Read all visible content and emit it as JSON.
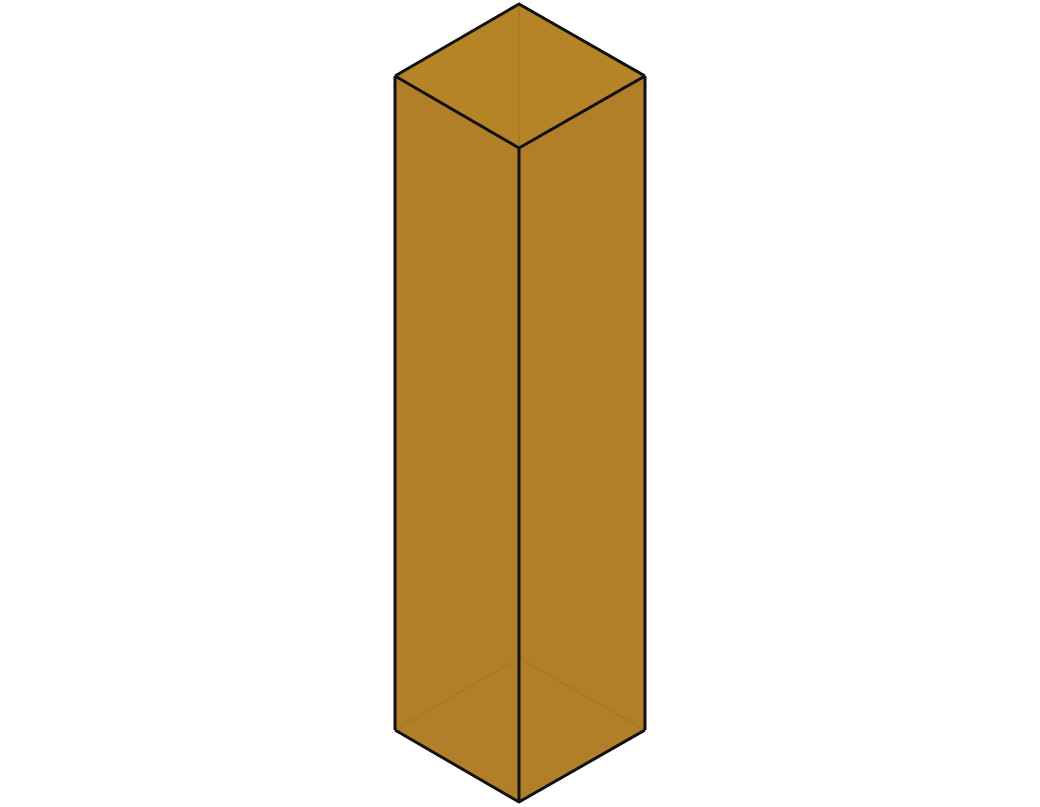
{
  "diagram": {
    "shape": "rectangular prism (square base, tall)",
    "colors": {
      "face_fill": "#b07f28",
      "face_fill_top": "#b58426",
      "edge_stroke": "#111111",
      "hidden_edge_stroke": "#9c6f1f",
      "background": "#ffffff"
    },
    "faces": [
      "top",
      "left",
      "right"
    ],
    "visible_edges": [
      "top-left",
      "top-right",
      "top-front-left",
      "top-front-right",
      "front-vertical",
      "left-vertical",
      "right-vertical",
      "bottom-front-left",
      "bottom-front-right"
    ],
    "hidden_edges": [
      "back-vertical",
      "bottom-back-left",
      "bottom-back-right"
    ]
  }
}
